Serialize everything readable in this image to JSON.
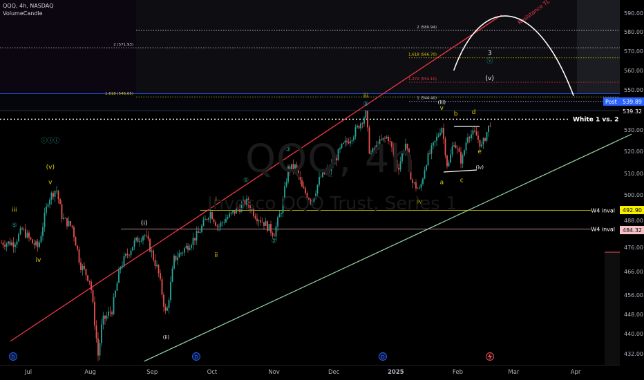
{
  "header": {
    "symbol_line": "QQQ, 4h, NASDAQ",
    "indicator": "VolumeCandle"
  },
  "watermark": {
    "main": "QQQ, 4h",
    "sub": "Invesco QQQ Trust, Series 1"
  },
  "colors": {
    "bg": "#000000",
    "up": "#26a69a",
    "down": "#ef5350",
    "resistance": "#f23645",
    "support": "#8fcca0",
    "wave": "#d4c800",
    "inval": "#e3d300",
    "axis_text": "#b2b5be"
  },
  "chart_data": {
    "type": "candlestick",
    "title": "QQQ, 4h, NASDAQ",
    "y_axis": {
      "ylim": [
        429,
        597
      ],
      "ticks": [
        590.0,
        580.0,
        570.0,
        560.0,
        550.0,
        540.0,
        530.0,
        520.0,
        510.0,
        500.0,
        488.0,
        476.0,
        466.0,
        456.0,
        448.0,
        440.0,
        432.0
      ]
    },
    "x_axis": {
      "labels": [
        "Jul",
        "Aug",
        "Sep",
        "Oct",
        "Nov",
        "Dec",
        "2025",
        "Feb",
        "Mar",
        "Apr"
      ],
      "bold_label": "2025"
    },
    "price_path": [
      {
        "date": "2024-06-24",
        "price": 478
      },
      {
        "date": "2024-06-28",
        "price": 484
      },
      {
        "date": "2024-07-03",
        "price": 478
      },
      {
        "date": "2024-07-06",
        "price": 476
      },
      {
        "date": "2024-07-11",
        "price": 498
      },
      {
        "date": "2024-07-15",
        "price": 503
      },
      {
        "date": "2024-07-18",
        "price": 489
      },
      {
        "date": "2024-07-23",
        "price": 485
      },
      {
        "date": "2024-07-27",
        "price": 469
      },
      {
        "date": "2024-08-01",
        "price": 462
      },
      {
        "date": "2024-08-05",
        "price": 431
      },
      {
        "date": "2024-08-07",
        "price": 445
      },
      {
        "date": "2024-08-12",
        "price": 450
      },
      {
        "date": "2024-08-16",
        "price": 468
      },
      {
        "date": "2024-08-23",
        "price": 478
      },
      {
        "date": "2024-08-28",
        "price": 482
      },
      {
        "date": "2024-08-30",
        "price": 478
      },
      {
        "date": "2024-09-04",
        "price": 466
      },
      {
        "date": "2024-09-08",
        "price": 447
      },
      {
        "date": "2024-09-12",
        "price": 471
      },
      {
        "date": "2024-09-18",
        "price": 476
      },
      {
        "date": "2024-09-24",
        "price": 482
      },
      {
        "date": "2024-09-30",
        "price": 492
      },
      {
        "date": "2024-10-04",
        "price": 485
      },
      {
        "date": "2024-10-08",
        "price": 489
      },
      {
        "date": "2024-10-15",
        "price": 494
      },
      {
        "date": "2024-10-18",
        "price": 497
      },
      {
        "date": "2024-10-23",
        "price": 490
      },
      {
        "date": "2024-10-27",
        "price": 487
      },
      {
        "date": "2024-11-01",
        "price": 482
      },
      {
        "date": "2024-11-05",
        "price": 494
      },
      {
        "date": "2024-11-08",
        "price": 512
      },
      {
        "date": "2024-11-12",
        "price": 513
      },
      {
        "date": "2024-11-15",
        "price": 503
      },
      {
        "date": "2024-11-20",
        "price": 497
      },
      {
        "date": "2024-11-24",
        "price": 508
      },
      {
        "date": "2024-11-29",
        "price": 512
      },
      {
        "date": "2024-12-05",
        "price": 522
      },
      {
        "date": "2024-12-10",
        "price": 527
      },
      {
        "date": "2024-12-14",
        "price": 533
      },
      {
        "date": "2024-12-17",
        "price": 538
      },
      {
        "date": "2024-12-19",
        "price": 518
      },
      {
        "date": "2024-12-24",
        "price": 524
      },
      {
        "date": "2024-12-28",
        "price": 527
      },
      {
        "date": "2025-01-02",
        "price": 512
      },
      {
        "date": "2025-01-06",
        "price": 524
      },
      {
        "date": "2025-01-09",
        "price": 506
      },
      {
        "date": "2025-01-13",
        "price": 502
      },
      {
        "date": "2025-01-16",
        "price": 515
      },
      {
        "date": "2025-01-21",
        "price": 525
      },
      {
        "date": "2025-01-24",
        "price": 532
      },
      {
        "date": "2025-01-27",
        "price": 512
      },
      {
        "date": "2025-01-30",
        "price": 525
      },
      {
        "date": "2025-02-03",
        "price": 515
      },
      {
        "date": "2025-02-06",
        "price": 528
      },
      {
        "date": "2025-02-10",
        "price": 528
      },
      {
        "date": "2025-02-13",
        "price": 522
      },
      {
        "date": "2025-02-17",
        "price": 533
      },
      {
        "date": "2025-02-20",
        "price": 539.32
      }
    ],
    "horizontal_levels": [
      {
        "label": "2 (580.94)",
        "price": 580.94,
        "style": "dotted",
        "color": "#d1d4dc"
      },
      {
        "label": "2 (571.93)",
        "price": 571.93,
        "style": "dotted",
        "color": "#d1d4dc"
      },
      {
        "label": "1.618 (566.70)",
        "price": 566.7,
        "style": "dotted",
        "color": "#e3d300"
      },
      {
        "label": "1.272 (554.10)",
        "price": 554.1,
        "style": "dotted",
        "color": "#f23645"
      },
      {
        "label": "1.618 (546.65)",
        "price": 546.65,
        "style": "dotted",
        "color": "#e3d300"
      },
      {
        "label": "1 (544.40)",
        "price": 544.4,
        "style": "dotted",
        "color": "#d1d4dc"
      },
      {
        "label": "White 1 vs. 2",
        "price": 535.5,
        "style": "dotted",
        "color": "#ffffff"
      },
      {
        "label": "W4 inval",
        "price": 492.9,
        "style": "solid",
        "color": "#e3d300"
      },
      {
        "label": "W4 inval",
        "price": 484.32,
        "style": "solid",
        "color": "#d8a0a8"
      }
    ],
    "price_labels": [
      {
        "text": "Post",
        "value": "539.89",
        "bg": "#2962ff",
        "fg": "#ffffff"
      },
      {
        "text": "",
        "value": "539.32",
        "bg": "#000000",
        "fg": "#ffffff"
      },
      {
        "text": "",
        "value": "492.90",
        "bg": "#f7f100",
        "fg": "#000000"
      },
      {
        "text": "",
        "value": "484.32",
        "bg": "#f8c3c8",
        "fg": "#000000"
      }
    ],
    "trendlines": [
      {
        "name": "Resistance TL",
        "label": "Resistance TL",
        "from": {
          "date": "2024-06-22",
          "price": 437
        },
        "to": {
          "date": "2025-02-23",
          "price": 589
        },
        "color": "#f23645"
      },
      {
        "name": "support",
        "label": "",
        "from": {
          "date": "2024-08-28",
          "price": 429
        },
        "to": {
          "date": "2025-04-29",
          "price": 528
        },
        "color": "#8fcca0"
      }
    ],
    "wave_labels": [
      {
        "text": "iii",
        "date": "2024-06-24",
        "price": 492,
        "color": "#e3d300"
      },
      {
        "text": "⑤",
        "date": "2024-06-24",
        "price": 485,
        "color": "#26a69a"
      },
      {
        "text": "iv",
        "date": "2024-07-06",
        "price": 470,
        "color": "#e3d300"
      },
      {
        "text": "ⓘⓘⓘ",
        "date": "2024-07-12",
        "price": 524,
        "color": "#26a69a"
      },
      {
        "text": "(v)",
        "date": "2024-07-12",
        "price": 512,
        "color": "#e3d300"
      },
      {
        "text": "v",
        "date": "2024-07-12",
        "price": 505,
        "color": "#e3d300"
      },
      {
        "text": "(i)",
        "date": "2024-08-28",
        "price": 486,
        "color": "#ffffff"
      },
      {
        "text": "(ii)",
        "date": "2024-09-08",
        "price": 438,
        "color": "#ffffff"
      },
      {
        "text": "i",
        "date": "2024-10-03",
        "price": 497,
        "color": "#e3d300"
      },
      {
        "text": "ii",
        "date": "2024-10-03",
        "price": 472,
        "color": "#e3d300"
      },
      {
        "text": "①",
        "date": "2024-10-18",
        "price": 506,
        "color": "#26a69a"
      },
      {
        "text": "②",
        "date": "2024-11-01",
        "price": 478,
        "color": "#26a69a"
      },
      {
        "text": "③",
        "date": "2024-11-08",
        "price": 520,
        "color": "#26a69a"
      },
      {
        "text": "④",
        "date": "2024-11-20",
        "price": 495,
        "color": "#26a69a"
      },
      {
        "text": "⑤",
        "date": "2024-12-17",
        "price": 542,
        "color": "#26a69a"
      },
      {
        "text": "iii",
        "date": "2024-12-17",
        "price": 546,
        "color": "#e3d300"
      },
      {
        "text": "iv",
        "date": "2025-01-13",
        "price": 496,
        "color": "#e3d300"
      },
      {
        "text": "(iii)",
        "date": "2025-01-24",
        "price": 543,
        "color": "#ffffff"
      },
      {
        "text": "v",
        "date": "2025-01-24",
        "price": 540,
        "color": "#e3d300"
      },
      {
        "text": "a",
        "date": "2025-01-24",
        "price": 505,
        "color": "#e3d300"
      },
      {
        "text": "b",
        "date": "2025-01-31",
        "price": 537,
        "color": "#e3d300"
      },
      {
        "text": "c",
        "date": "2025-02-03",
        "price": 506,
        "color": "#e3d300"
      },
      {
        "text": "d",
        "date": "2025-02-09",
        "price": 538,
        "color": "#e3d300"
      },
      {
        "text": "e",
        "date": "2025-02-12",
        "price": 519,
        "color": "#e3d300"
      },
      {
        "text": "(iv)",
        "date": "2025-02-12",
        "price": 512,
        "color": "#ffffff"
      },
      {
        "text": "3",
        "date": "2025-02-17",
        "price": 568,
        "color": "#ffffff"
      },
      {
        "text": "ⓥ",
        "date": "2025-02-17",
        "price": 564,
        "color": "#26a69a"
      },
      {
        "text": "(v)",
        "date": "2025-02-17",
        "price": 555,
        "color": "#ffffff"
      }
    ],
    "projection_arc": {
      "from": {
        "date": "2025-01-30",
        "price": 560
      },
      "peak": {
        "date": "2025-02-26",
        "price": 591
      },
      "to": {
        "date": "2025-03-31",
        "price": 547
      },
      "color": "#ffffff"
    },
    "resistance_annotation": "Resistance TL"
  }
}
